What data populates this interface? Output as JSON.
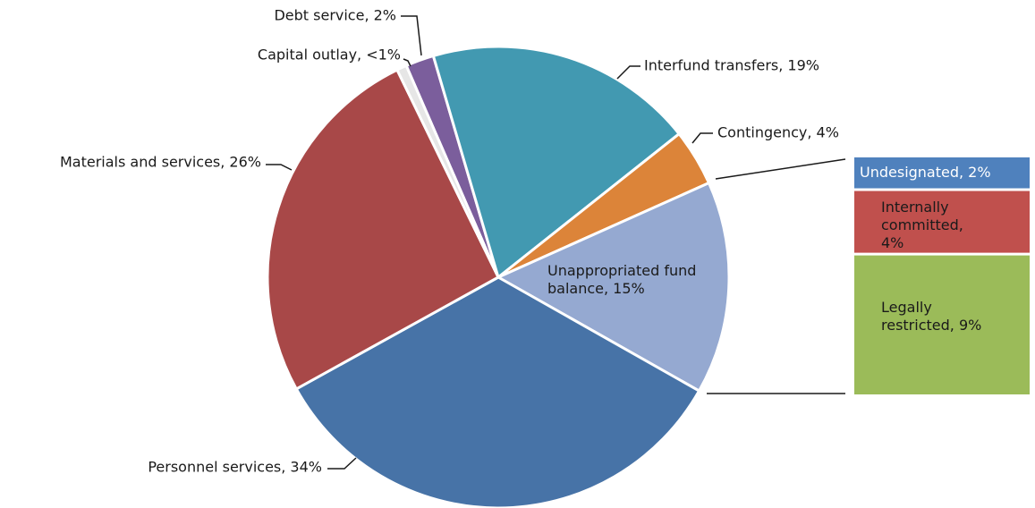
{
  "chart_data": {
    "type": "pie",
    "categories": [
      "Debt service",
      "Interfund transfers",
      "Contingency",
      "Unappropriated fund balance",
      "Personnel services",
      "Materials and services",
      "Capital outlay"
    ],
    "values": [
      2,
      19,
      4,
      15,
      34,
      26,
      0.7
    ],
    "value_labels": [
      "Debt service, 2%",
      "Interfund transfers, 19%",
      "Contingency, 4%",
      "Unappropriated fund balance, 15%",
      "Personnel services, 34%",
      "Materials and services, 26%",
      "Capital outlay, <1%"
    ],
    "colors": [
      "#7b5e9c",
      "#4299b1",
      "#dc8439",
      "#95a9d1",
      "#4773a7",
      "#a84848",
      "#e6e6e6"
    ],
    "breakdown": {
      "categories": [
        "Undesignated",
        "Internally committed",
        "Legally restricted"
      ],
      "values": [
        2,
        4,
        9
      ],
      "value_labels": [
        "Undesignated, 2%",
        "Internally committed, 4%",
        "Legally restricted, 9%"
      ],
      "colors": [
        "#4f81bd",
        "#c0504d",
        "#9bbb59"
      ]
    }
  }
}
